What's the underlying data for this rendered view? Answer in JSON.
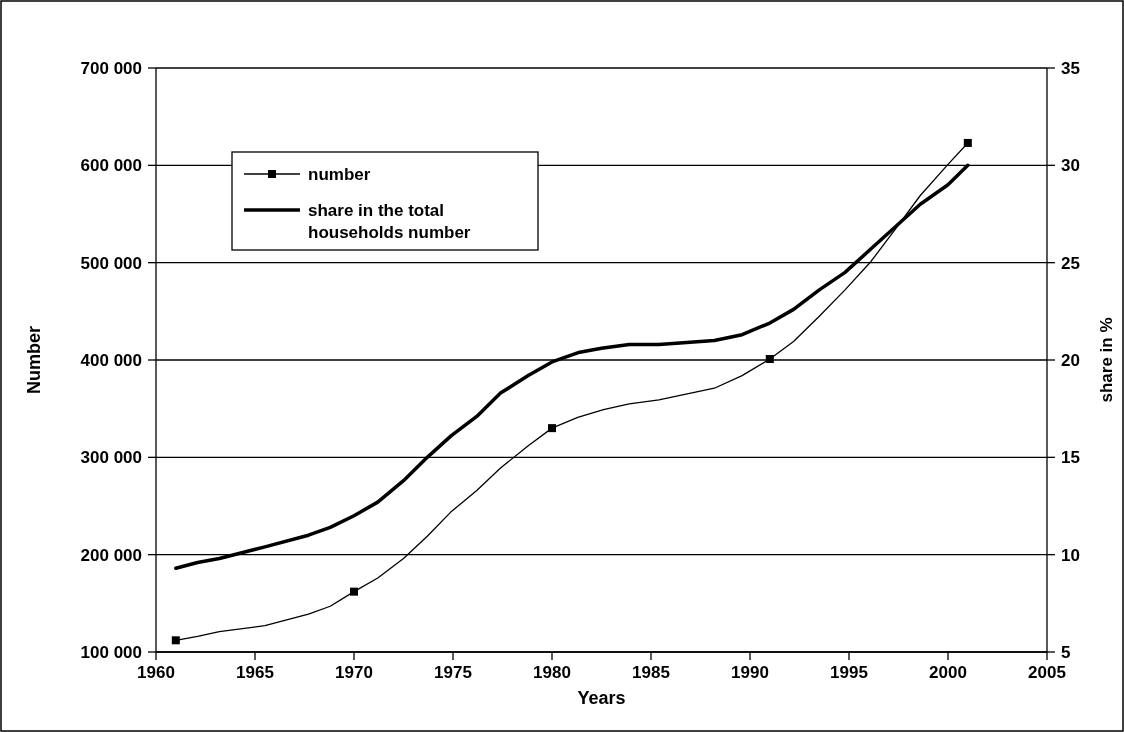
{
  "chart_data": {
    "type": "line",
    "xlabel": "Years",
    "ylabel": "Number",
    "y2label": "share in %",
    "xlim": [
      1960,
      2005
    ],
    "xticks": [
      1960,
      1965,
      1970,
      1975,
      1980,
      1985,
      1990,
      1995,
      2000,
      2005
    ],
    "ylim": [
      100000,
      700000
    ],
    "yticks": [
      {
        "value": 100000,
        "label": "100 000"
      },
      {
        "value": 200000,
        "label": "200 000"
      },
      {
        "value": 300000,
        "label": "300 000"
      },
      {
        "value": 400000,
        "label": "400 000"
      },
      {
        "value": 500000,
        "label": "500 000"
      },
      {
        "value": 600000,
        "label": "600 000"
      },
      {
        "value": 700000,
        "label": "700 000"
      }
    ],
    "y2lim": [
      5,
      35
    ],
    "y2ticks": [
      5,
      10,
      15,
      20,
      25,
      30,
      35
    ],
    "grid": "y",
    "legend": "top left",
    "series": [
      {
        "name": "number",
        "type": "scatter",
        "marker": "square",
        "color": "#000000",
        "x": [
          1961,
          1970,
          1980,
          1991,
          2001
        ],
        "values": [
          112000,
          162000,
          330000,
          401000,
          623000
        ]
      },
      {
        "color": "#000000",
        "x": [
          1961,
          1962.1,
          1963.2,
          1965.5,
          1967.7,
          1968.8,
          1970,
          1971.2,
          1972.5,
          1973.7,
          1974.9,
          1976.2,
          1977.4,
          1978.8,
          1980,
          1981.3,
          1982.6,
          1983.9,
          1985.4,
          1988.2,
          1989.6,
          1991,
          1992.2,
          1993.5,
          1994.8,
          1996.1,
          1997.4,
          1998.6,
          2000,
          2001
        ],
        "values": [
          112000,
          116000,
          121000,
          127000,
          139000,
          147000,
          162000,
          176000,
          196000,
          219000,
          244000,
          266000,
          289000,
          312000,
          330000,
          341000,
          349000,
          355000,
          359000,
          371000,
          384000,
          401000,
          419000,
          445000,
          472000,
          501000,
          536000,
          569000,
          601000,
          623000
        ]
      },
      {
        "name": "share in the total households number",
        "axis": "y2",
        "color": "#000000",
        "x": [
          1961,
          1962.1,
          1963.2,
          1965.5,
          1967.7,
          1968.8,
          1970,
          1971.2,
          1972.5,
          1973.7,
          1974.9,
          1976.2,
          1977.4,
          1978.8,
          1980,
          1981.4,
          1982.5,
          1983.9,
          1985.4,
          1988.2,
          1989.6,
          1991,
          1992.2,
          1993.5,
          1994.8,
          1996.1,
          1997.4,
          1998.6,
          2000,
          2001
        ],
        "values": [
          9.3,
          9.6,
          9.8,
          10.4,
          11.0,
          11.4,
          12.0,
          12.7,
          13.8,
          15.0,
          16.1,
          17.1,
          18.3,
          19.2,
          19.9,
          20.4,
          20.6,
          20.8,
          20.8,
          21.0,
          21.3,
          21.9,
          22.6,
          23.6,
          24.5,
          25.7,
          26.9,
          28.0,
          29.0,
          30.0
        ]
      }
    ]
  }
}
